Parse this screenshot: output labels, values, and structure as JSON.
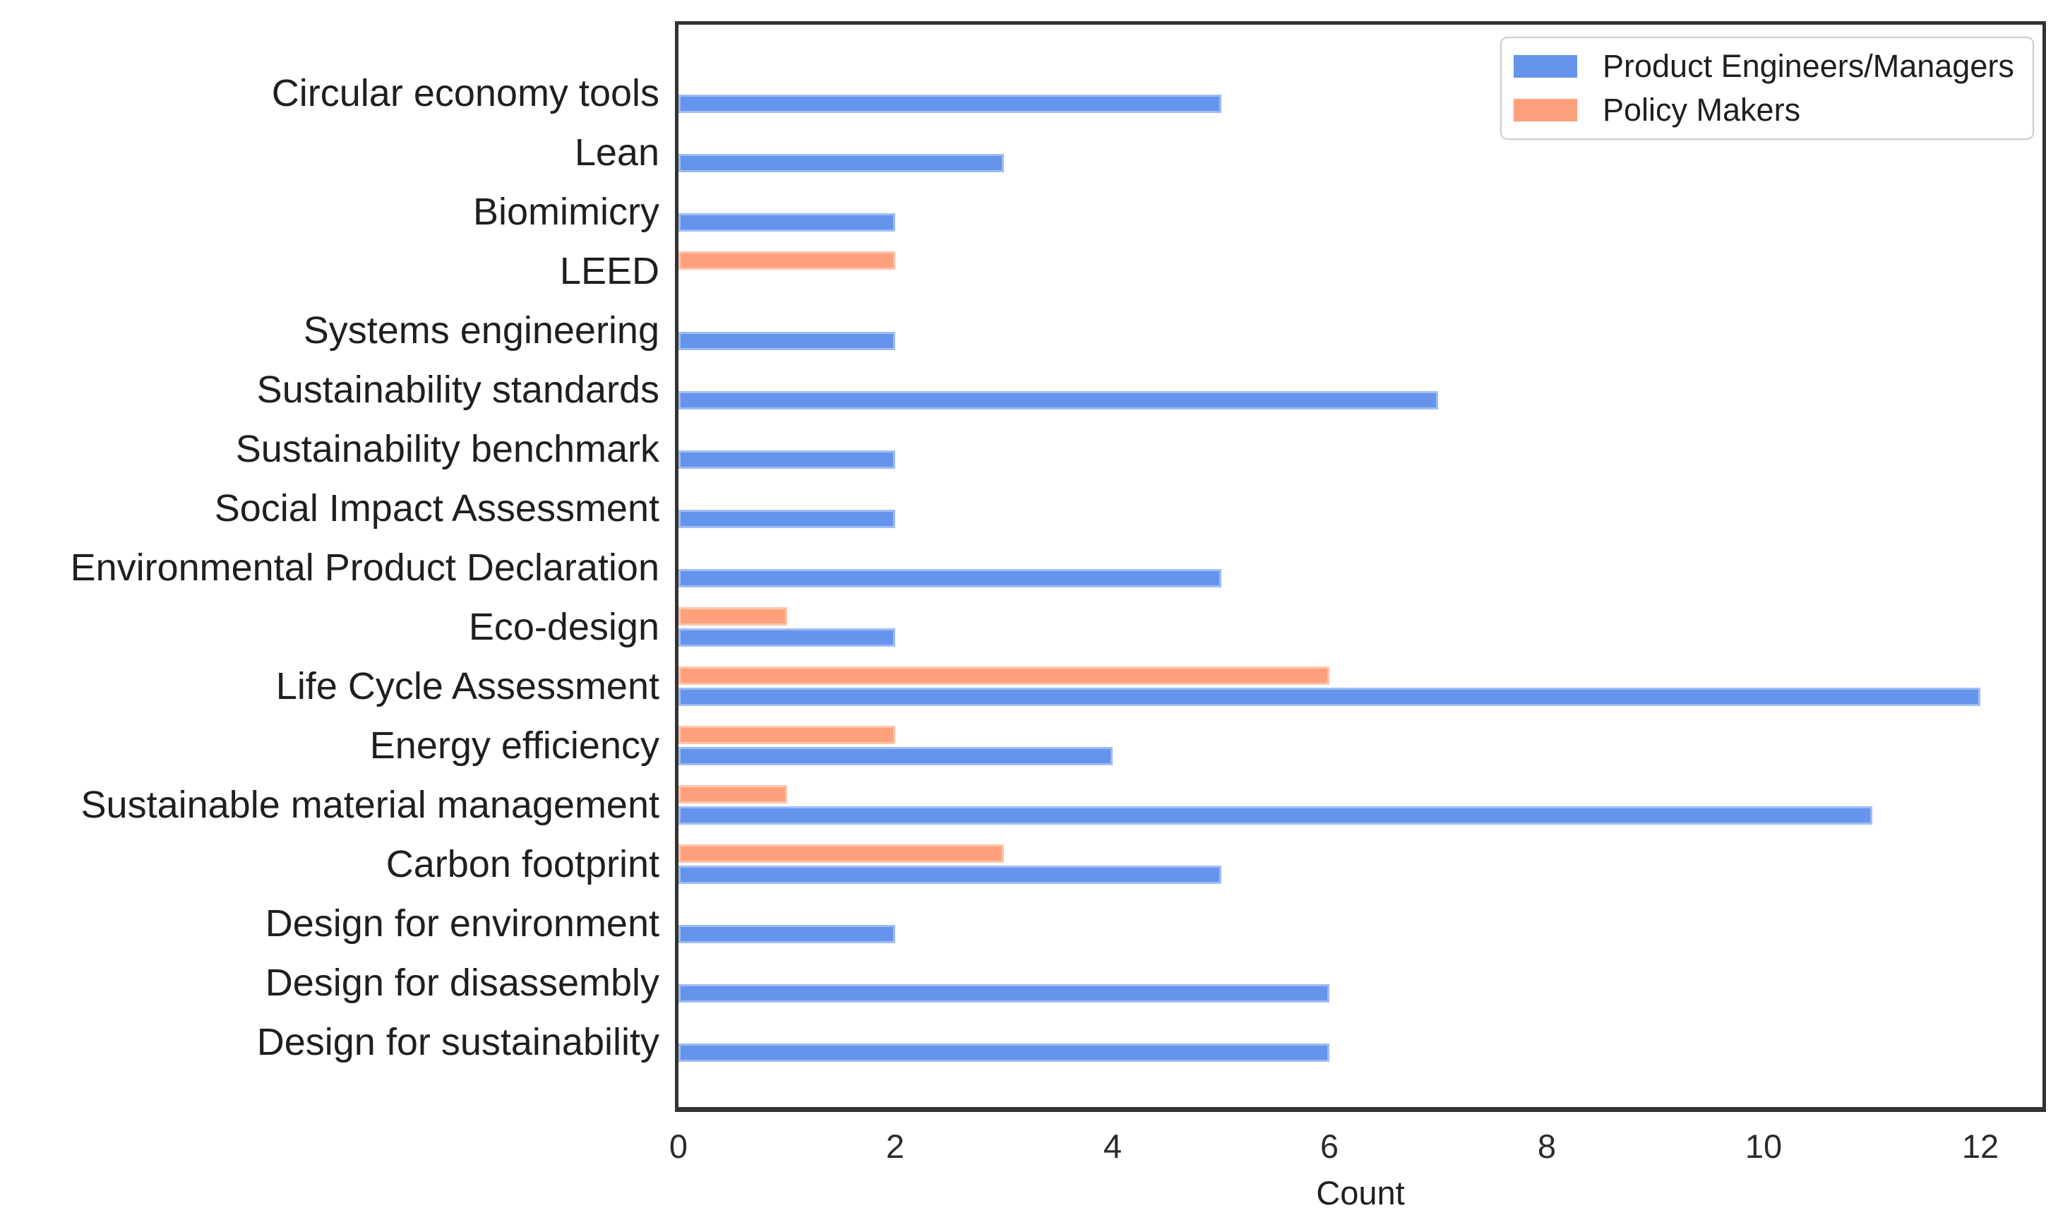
{
  "figure": {
    "background": "#ffffff"
  },
  "chart_data": {
    "type": "bar",
    "orientation": "horizontal",
    "title": "",
    "xlabel": "Count",
    "ylabel": "",
    "xlim": [
      0,
      12.57
    ],
    "xticks": [
      0,
      2,
      4,
      6,
      8,
      10,
      12
    ],
    "grid": false,
    "legend_position": "upper right",
    "categories": [
      "Circular economy tools",
      "Lean",
      "Biomimicry",
      "LEED",
      "Systems engineering",
      "Sustainability standards",
      "Sustainability benchmark",
      "Social Impact Assessment",
      "Environmental Product Declaration",
      "Eco-design",
      "Life Cycle Assessment",
      "Energy efficiency",
      "Sustainable material management",
      "Carbon footprint",
      "Design for environment",
      "Design for disassembly",
      "Design for sustainability"
    ],
    "series": [
      {
        "name": "Product Engineers/Managers",
        "color": "#6494ec",
        "values": [
          5,
          3,
          2,
          0,
          2,
          7,
          2,
          2,
          5,
          2,
          12,
          4,
          11,
          5,
          2,
          6,
          6
        ]
      },
      {
        "name": "Policy Makers",
        "color": "#ffa07c",
        "values": [
          0,
          0,
          0,
          2,
          0,
          0,
          0,
          0,
          0,
          1,
          6,
          2,
          1,
          3,
          0,
          0,
          0
        ]
      }
    ]
  },
  "style": {
    "frame_color": "#333333",
    "text_color": "#1f1f1f",
    "legend_border_color": "#cccccc"
  }
}
